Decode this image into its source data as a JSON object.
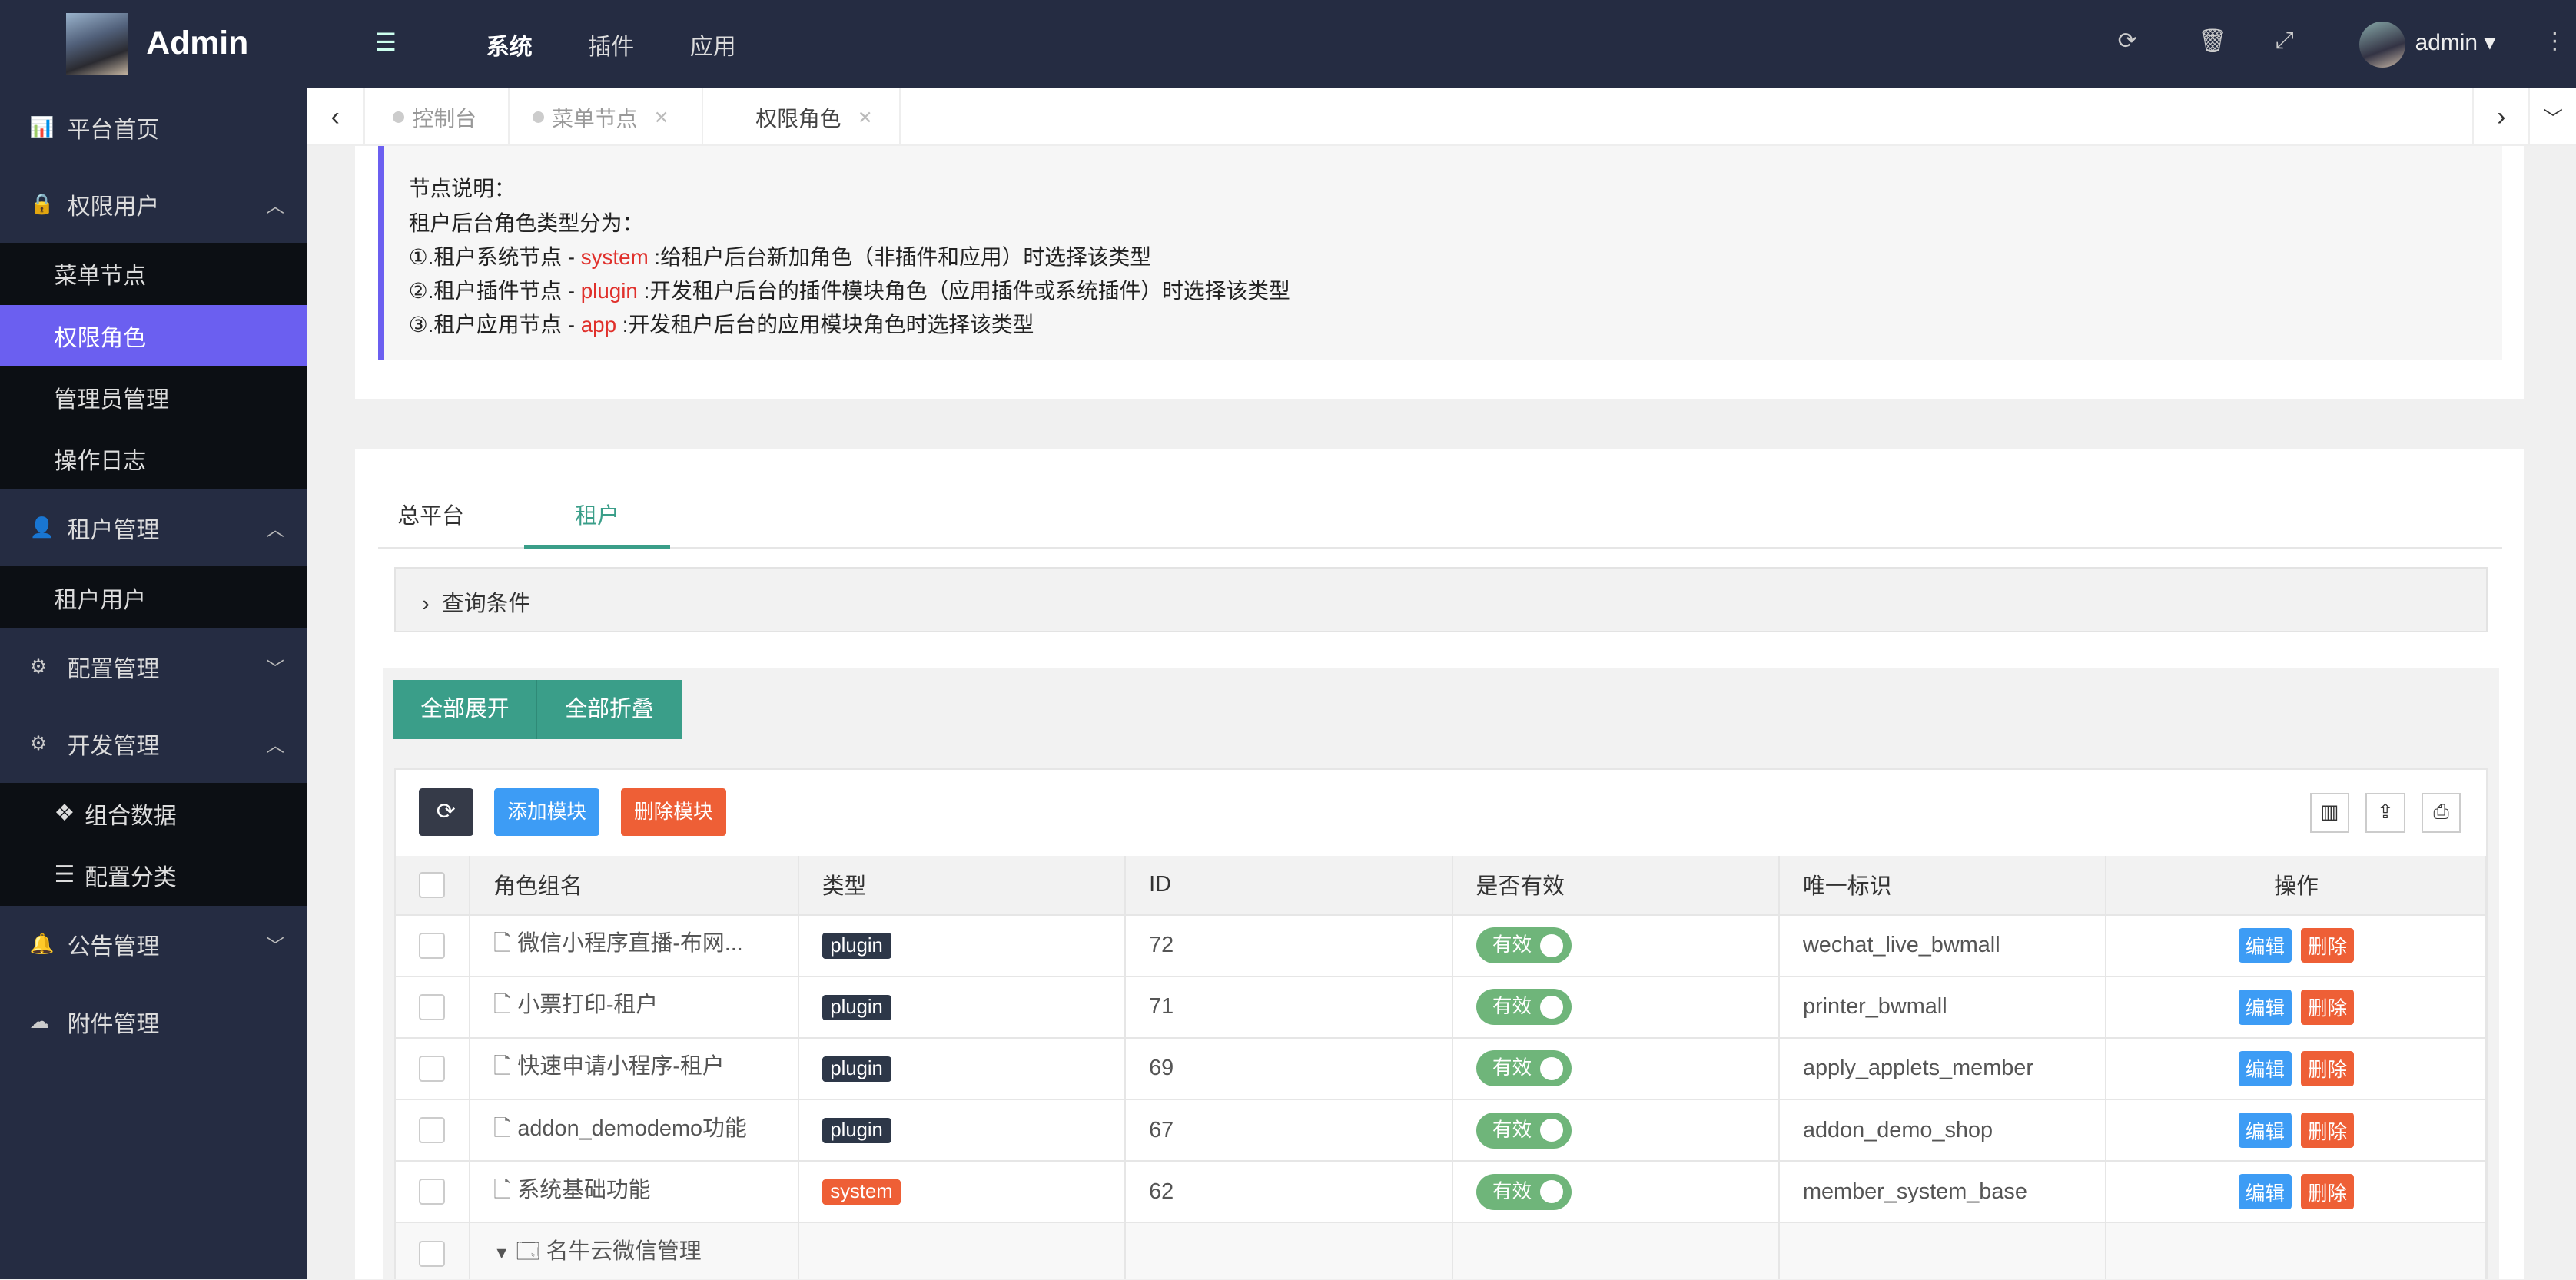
{
  "header": {
    "brand": "Admin",
    "nav": [
      "系统",
      "插件",
      "应用"
    ],
    "active_nav": "系统",
    "user": "admin"
  },
  "sidebar": {
    "items": [
      {
        "label": "平台首页",
        "icon": "bar-chart-icon"
      },
      {
        "label": "权限用户",
        "icon": "lock-icon",
        "expanded": true,
        "children": [
          "菜单节点",
          "权限角色",
          "管理员管理",
          "操作日志"
        ]
      },
      {
        "label": "租户管理",
        "icon": "user-icon",
        "expanded": true,
        "children": [
          "租户用户"
        ]
      },
      {
        "label": "配置管理",
        "icon": "gear-icon",
        "expanded": false
      },
      {
        "label": "开发管理",
        "icon": "gears-icon",
        "expanded": true,
        "children": [
          "组合数据",
          "配置分类"
        ]
      },
      {
        "label": "公告管理",
        "icon": "bell-icon",
        "expanded": false
      },
      {
        "label": "附件管理",
        "icon": "cloud-upload-icon"
      }
    ],
    "active": "权限角色"
  },
  "tabs": [
    "控制台",
    "菜单节点",
    "权限角色"
  ],
  "note": {
    "title": "节点说明：",
    "subtitle": "租户后台角色类型分为：",
    "lines": [
      {
        "pre": "①.租户系统节点 - ",
        "key": "system",
        "post": " :给租户后台新加角色（非插件和应用）时选择该类型"
      },
      {
        "pre": "②.租户插件节点 - ",
        "key": "plugin",
        "post": " :开发租户后台的插件模块角色（应用插件或系统插件）时选择该类型"
      },
      {
        "pre": "③.租户应用节点 - ",
        "key": "app",
        "post": " :开发租户后台的应用模块角色时选择该类型"
      }
    ]
  },
  "platform_tabs": [
    "总平台",
    "租户"
  ],
  "active_platform_tab": "租户",
  "query_label": "查询条件",
  "buttons": {
    "expand_all": "全部展开",
    "collapse_all": "全部折叠",
    "add": "添加模块",
    "delete": "删除模块"
  },
  "table": {
    "columns": [
      "角色组名",
      "类型",
      "ID",
      "是否有效",
      "唯一标识",
      "操作"
    ],
    "rows": [
      {
        "name": "微信小程序直播-布网...",
        "type": "plugin",
        "id": "72",
        "status": "有效",
        "key": "wechat_live_bwmall"
      },
      {
        "name": "小票打印-租户",
        "type": "plugin",
        "id": "71",
        "status": "有效",
        "key": "printer_bwmall"
      },
      {
        "name": "快速申请小程序-租户",
        "type": "plugin",
        "id": "69",
        "status": "有效",
        "key": "apply_applets_member"
      },
      {
        "name": "addon_demodemo功能",
        "type": "plugin",
        "id": "67",
        "status": "有效",
        "key": "addon_demo_shop"
      },
      {
        "name": "系统基础功能",
        "type": "system",
        "id": "62",
        "status": "有效",
        "key": "member_system_base"
      }
    ],
    "group_row": "名牛云微信管理",
    "edit": "编辑",
    "remove": "删除"
  },
  "colors": {
    "header": "#252c42",
    "active": "#6b5ff0",
    "teal": "#3a9e89",
    "blue": "#3d9cf5",
    "orange": "#ee5f36",
    "plugin": "#2d3748",
    "green": "#6fb57a"
  }
}
